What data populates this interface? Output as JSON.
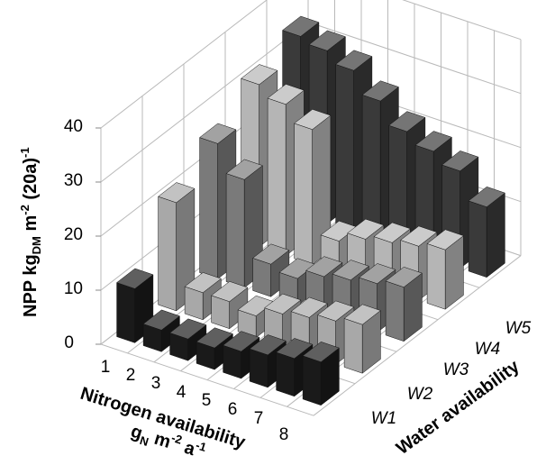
{
  "chart_data": {
    "type": "bar3d",
    "title": "",
    "zlabel": "NPP kg",
    "zlabel_sub": "DM",
    "zlabel_unit_a": " m",
    "zlabel_unit_sup": "-2",
    "zlabel_unit_b": " (20a)",
    "zlabel_unit_sup2": "-1",
    "xlabel_line1": "Nitrogen availability",
    "xlabel_line2_a": "g",
    "xlabel_line2_sub": "N",
    "xlabel_line2_b": " m",
    "xlabel_line2_sup": "-2",
    "xlabel_line2_c": " a",
    "xlabel_line2_sup2": "-1",
    "ylabel": "Water availability",
    "zlim": [
      0,
      40
    ],
    "zticks": [
      "0",
      "10",
      "20",
      "30",
      "40"
    ],
    "x_categories": [
      "1",
      "2",
      "3",
      "4",
      "5",
      "6",
      "7",
      "8"
    ],
    "y_categories": [
      "W1",
      "W2",
      "W3",
      "W4",
      "W5"
    ],
    "grid": true,
    "series": [
      {
        "name": "W1",
        "color": "#1a1a1a",
        "values": [
          10,
          4,
          4,
          4,
          5,
          6,
          7,
          8
        ]
      },
      {
        "name": "W2",
        "color": "#a8a8a8",
        "values": [
          20,
          5,
          5,
          4,
          6,
          7,
          8,
          9
        ]
      },
      {
        "name": "W3",
        "color": "#7a7a7a",
        "values": [
          25,
          20,
          6,
          5,
          7,
          8,
          9,
          10
        ]
      },
      {
        "name": "W4",
        "color": "#b5b5b5",
        "values": [
          30,
          28,
          25,
          6,
          8,
          9,
          10,
          11
        ]
      },
      {
        "name": "W5",
        "color": "#3a3a3a",
        "values": [
          33,
          32,
          30,
          26,
          22,
          20,
          18,
          13
        ]
      }
    ]
  }
}
